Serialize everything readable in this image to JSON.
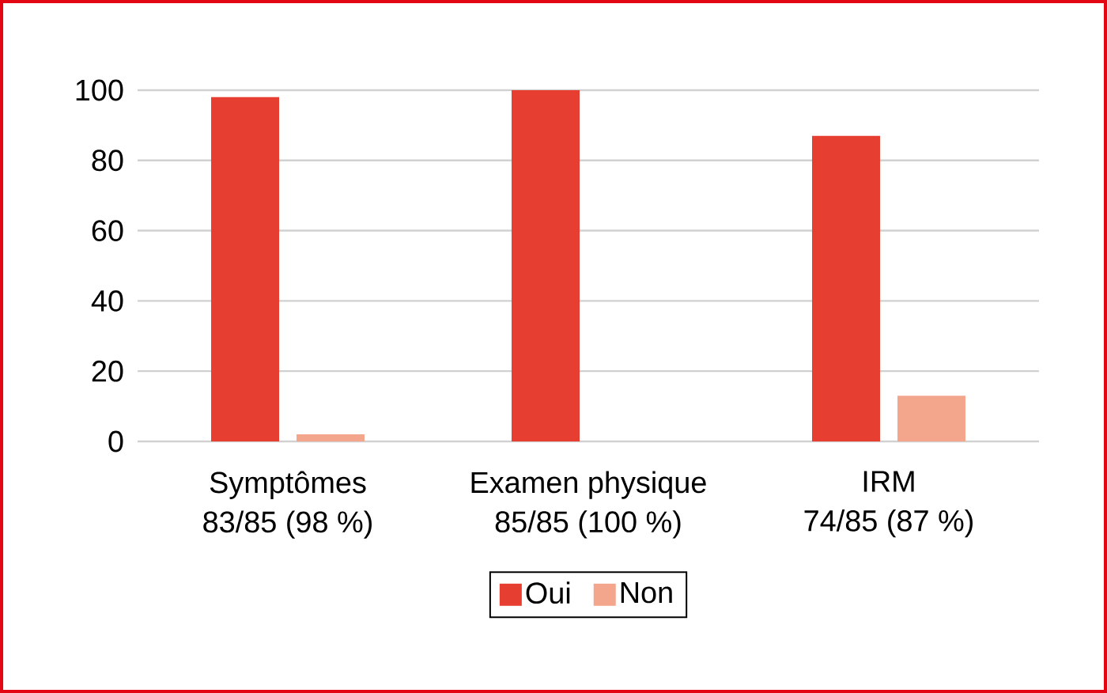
{
  "chart_data": {
    "type": "bar",
    "categories": [
      "Symptômes\n83/85 (98 %)",
      "Examen physique\n85/85 (100 %)",
      "IRM\n74/85 (87 %)"
    ],
    "series": [
      {
        "name": "Oui",
        "color": "#e63e30",
        "values": [
          98,
          100,
          87
        ]
      },
      {
        "name": "Non",
        "color": "#f4a68c",
        "values": [
          2,
          0,
          13
        ]
      }
    ],
    "ylim": [
      0,
      100
    ],
    "yticks": [
      0,
      20,
      40,
      60,
      80,
      100
    ],
    "grid": "y",
    "legend": "bottom"
  }
}
